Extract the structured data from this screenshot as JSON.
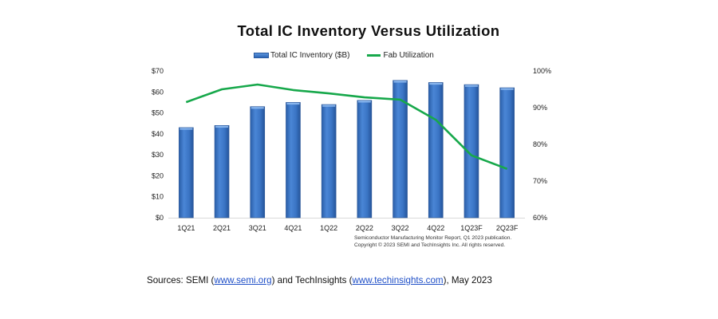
{
  "chart_data": {
    "type": "bar",
    "title": "Total IC Inventory Versus Utilization",
    "categories": [
      "1Q21",
      "2Q21",
      "3Q21",
      "4Q21",
      "1Q22",
      "2Q22",
      "3Q22",
      "4Q22",
      "1Q23F",
      "2Q23F"
    ],
    "series": [
      {
        "name": "Total IC Inventory ($B)",
        "type": "bar",
        "axis": "left",
        "color": "#3a75c8",
        "values": [
          43,
          44,
          53,
          55,
          54,
          56,
          65.5,
          64.5,
          63.5,
          62
        ]
      },
      {
        "name": "Fab Utilization",
        "type": "line",
        "axis": "right",
        "color": "#17a84b",
        "values": [
          91.5,
          95,
          96.3,
          94.8,
          93.9,
          92.8,
          92.2,
          86.7,
          77,
          73.3
        ]
      }
    ],
    "left_axis": {
      "label": "",
      "ylim": [
        0,
        70
      ],
      "ticks": [
        "$0",
        "$10",
        "$20",
        "$30",
        "$40",
        "$50",
        "$60",
        "$70"
      ]
    },
    "right_axis": {
      "label": "",
      "ylim": [
        60,
        100
      ],
      "ticks": [
        "60%",
        "70%",
        "80%",
        "90%",
        "100%"
      ]
    },
    "grid": false,
    "legend": "top-center"
  },
  "legend": {
    "bar_label": "Total IC Inventory ($B)",
    "line_label": "Fab Utilization"
  },
  "note": {
    "line1": "Semiconductor Manufacturing Monitor Report, Q1 2023 publication.",
    "line2": "Copyright © 2023 SEMI and TechInsights Inc.  All rights reserved."
  },
  "sources": {
    "prefix": "Sources: SEMI  (",
    "link1": "www.semi.org",
    "middle": ") and TechInsights  (",
    "link2": "www.techinsights.com",
    "suffix": "), May  2023"
  }
}
